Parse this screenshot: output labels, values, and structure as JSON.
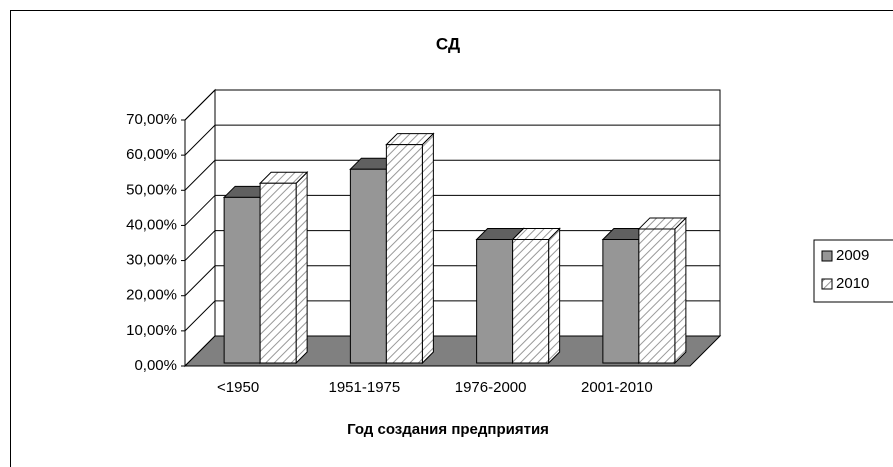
{
  "chart_data": {
    "type": "bar3d",
    "title": "СД",
    "x_label": "Год создания предприятия",
    "categories": [
      "<1950",
      "1951-1975",
      "1976-2000",
      "2001-2010"
    ],
    "series": [
      {
        "name": "2009",
        "color": "#969696",
        "hatch": false,
        "values": [
          48,
          56,
          36,
          36
        ]
      },
      {
        "name": "2010",
        "color": "#ffffff",
        "hatch": true,
        "values": [
          52,
          63,
          36,
          39
        ]
      }
    ],
    "ylim": [
      0,
      70
    ],
    "yticks": [
      {
        "value": 0,
        "label": "0,00%"
      },
      {
        "value": 10,
        "label": "10,00%"
      },
      {
        "value": 20,
        "label": "20,00%"
      },
      {
        "value": 30,
        "label": "30,00%"
      },
      {
        "value": 40,
        "label": "40,00%"
      },
      {
        "value": 50,
        "label": "50,00%"
      },
      {
        "value": 60,
        "label": "60,00%"
      },
      {
        "value": 70,
        "label": "70,00%"
      }
    ],
    "grid": true,
    "legend": "right"
  }
}
